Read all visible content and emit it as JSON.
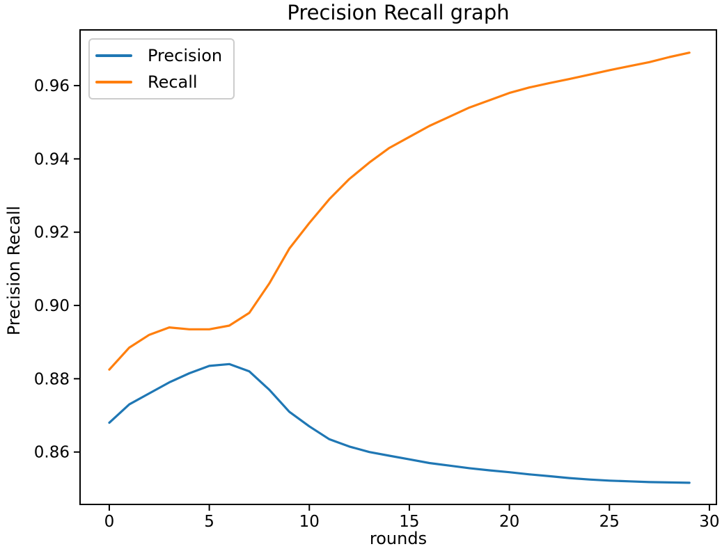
{
  "chart_data": {
    "type": "line",
    "title": "Precision Recall graph",
    "xlabel": "rounds",
    "ylabel": "Precision Recall",
    "grid": false,
    "background": "#ffffff",
    "axis_color": "#000000",
    "xlim": [
      -1.46,
      30.35
    ],
    "ylim": [
      0.8457,
      0.9752
    ],
    "xticks": [
      0,
      5,
      10,
      15,
      20,
      25,
      30
    ],
    "yticks": [
      0.86,
      0.88,
      0.9,
      0.92,
      0.94,
      0.96
    ],
    "legend_position": "upper-left",
    "x": [
      0,
      1,
      2,
      3,
      4,
      5,
      6,
      7,
      8,
      9,
      10,
      11,
      12,
      13,
      14,
      15,
      16,
      17,
      18,
      19,
      20,
      21,
      22,
      23,
      24,
      25,
      26,
      27,
      28,
      29
    ],
    "series": [
      {
        "name": "Precision",
        "color": "#1f77b4",
        "values": [
          0.868,
          0.873,
          0.876,
          0.879,
          0.8815,
          0.8835,
          0.884,
          0.882,
          0.877,
          0.871,
          0.867,
          0.8635,
          0.8615,
          0.86,
          0.859,
          0.858,
          0.857,
          0.8563,
          0.8556,
          0.855,
          0.8545,
          0.8539,
          0.8534,
          0.8529,
          0.8525,
          0.8522,
          0.852,
          0.8518,
          0.8517,
          0.8516
        ]
      },
      {
        "name": "Recall",
        "color": "#ff7f0e",
        "values": [
          0.8825,
          0.8885,
          0.892,
          0.894,
          0.8935,
          0.8935,
          0.8945,
          0.898,
          0.906,
          0.9155,
          0.9225,
          0.929,
          0.9345,
          0.939,
          0.943,
          0.946,
          0.949,
          0.9515,
          0.954,
          0.956,
          0.958,
          0.9595,
          0.9607,
          0.9618,
          0.963,
          0.9642,
          0.9653,
          0.9664,
          0.9678,
          0.969
        ]
      }
    ]
  }
}
